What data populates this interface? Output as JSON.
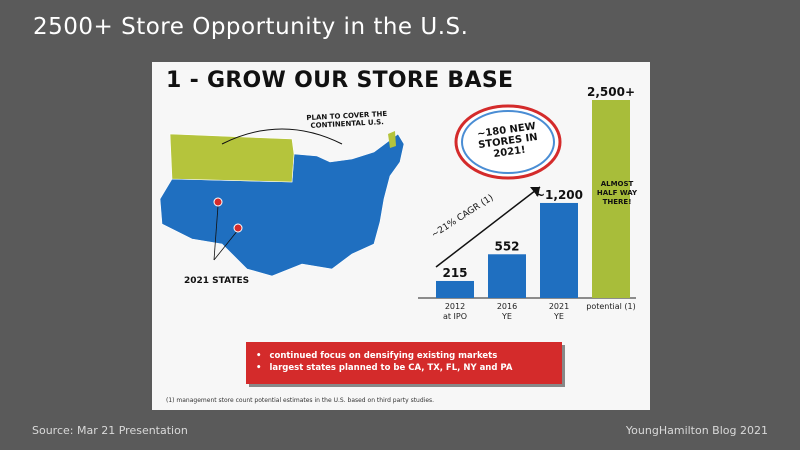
{
  "slide_title": "2500+ Store Opportunity in the U.S.",
  "footer": {
    "source": "Source: Mar 21 Presentation",
    "credit": "YoungHamilton Blog 2021"
  },
  "panel": {
    "heading": "1 - GROW OUR STORE BASE",
    "plan_note": "PLAN TO COVER THE CONTINENTAL U.S.",
    "states_label": "2021 STATES",
    "callout": "~180 NEW STORES IN 2021!",
    "cagr": "~21% CAGR (1)",
    "almost": "ALMOST HALF WAY THERE!",
    "bullets": [
      "continued focus on densifying existing markets",
      "largest states planned to be CA, TX, FL, NY and PA"
    ],
    "footnote": "(1) management store count potential estimates in the U.S. based on third party studies."
  },
  "colors": {
    "bar": "#1f6fc0",
    "potential_bar": "#a8bd3a",
    "map_blue": "#1f6fc0",
    "map_green": "#b5c43c",
    "bullet_box": "#d42b2b"
  },
  "chart_data": {
    "type": "bar",
    "categories": [
      "2012 at IPO",
      "2016 YE",
      "2021 YE",
      "potential (1)"
    ],
    "values": [
      215,
      552,
      1200,
      2500
    ],
    "data_labels": [
      "215",
      "552",
      "~1,200",
      "2,500+"
    ],
    "title": "1 - GROW OUR STORE BASE",
    "xlabel": "",
    "ylabel": "",
    "ylim": [
      0,
      2500
    ],
    "grid": false
  }
}
